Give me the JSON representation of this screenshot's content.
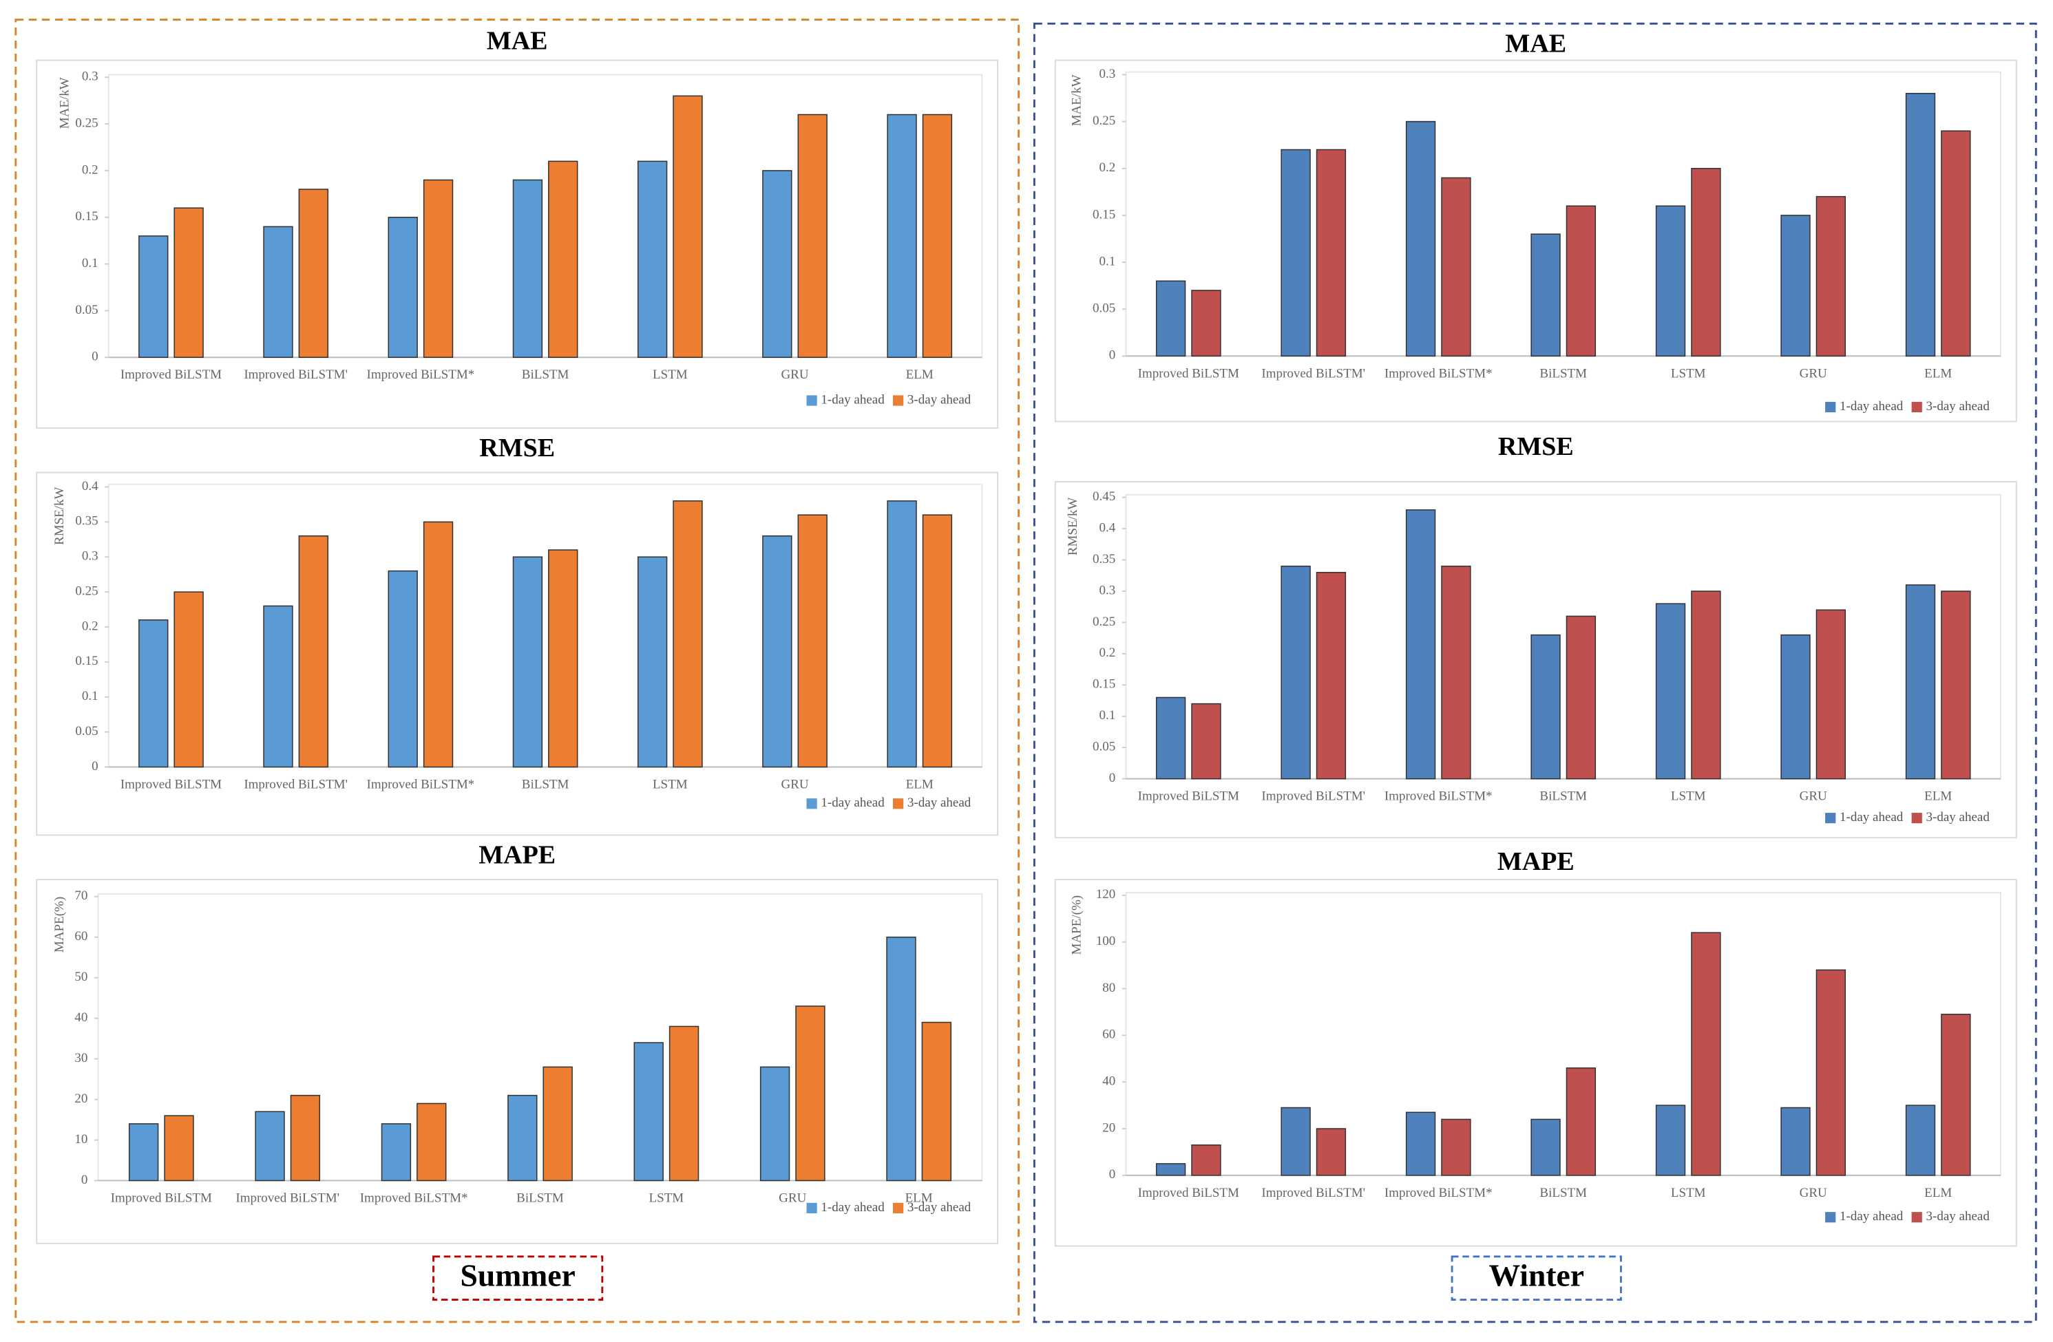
{
  "chart_data": [
    {
      "type": "bar",
      "title": "MAE",
      "ylabel": "MAE/kW",
      "categories": [
        "Improved BiLSTM",
        "Improved BiLSTM'",
        "Improved BiLSTM*",
        "BiLSTM",
        "LSTM",
        "GRU",
        "ELM"
      ],
      "series": [
        {
          "name": "1-day ahead",
          "color": "#5b9bd5",
          "values": [
            0.13,
            0.14,
            0.15,
            0.19,
            0.21,
            0.2,
            0.26
          ]
        },
        {
          "name": "3-day ahead",
          "color": "#ed7d31",
          "values": [
            0.16,
            0.18,
            0.19,
            0.21,
            0.28,
            0.26,
            0.26
          ]
        }
      ],
      "ylim": [
        0,
        0.3
      ],
      "yticks": [
        0,
        0.05,
        0.1,
        0.15,
        0.2,
        0.25,
        0.3
      ],
      "legend": "bottom-right"
    },
    {
      "type": "bar",
      "title": "RMSE",
      "ylabel": "RMSE/kW",
      "categories": [
        "Improved BiLSTM",
        "Improved BiLSTM'",
        "Improved BiLSTM*",
        "BiLSTM",
        "LSTM",
        "GRU",
        "ELM"
      ],
      "series": [
        {
          "name": "1-day ahead",
          "color": "#5b9bd5",
          "values": [
            0.21,
            0.23,
            0.28,
            0.3,
            0.3,
            0.33,
            0.38
          ]
        },
        {
          "name": "3-day ahead",
          "color": "#ed7d31",
          "values": [
            0.25,
            0.33,
            0.35,
            0.31,
            0.38,
            0.36,
            0.36
          ]
        }
      ],
      "ylim": [
        0,
        0.4
      ],
      "yticks": [
        0,
        0.05,
        0.1,
        0.15,
        0.2,
        0.25,
        0.3,
        0.35,
        0.4
      ],
      "legend": "bottom-right"
    },
    {
      "type": "bar",
      "title": "MAPE",
      "ylabel": "MAPE(%)",
      "categories": [
        "Improved BiLSTM",
        "Improved BiLSTM'",
        "Improved BiLSTM*",
        "BiLSTM",
        "LSTM",
        "GRU",
        "ELM"
      ],
      "series": [
        {
          "name": "1-day ahead",
          "color": "#5b9bd5",
          "values": [
            14,
            17,
            14,
            21,
            34,
            28,
            60
          ]
        },
        {
          "name": "3-day ahead",
          "color": "#ed7d31",
          "values": [
            16,
            21,
            19,
            28,
            38,
            43,
            39
          ]
        }
      ],
      "ylim": [
        0,
        70
      ],
      "yticks": [
        0,
        10,
        20,
        30,
        40,
        50,
        60,
        70
      ],
      "legend": "bottom-right"
    },
    {
      "type": "bar",
      "title": "MAE",
      "ylabel": "MAE/kW",
      "categories": [
        "Improved BiLSTM",
        "Improved BiLSTM'",
        "Improved BiLSTM*",
        "BiLSTM",
        "LSTM",
        "GRU",
        "ELM"
      ],
      "series": [
        {
          "name": "1-day ahead",
          "color": "#4f81bd",
          "values": [
            0.08,
            0.22,
            0.25,
            0.13,
            0.16,
            0.15,
            0.28
          ]
        },
        {
          "name": "3-day ahead",
          "color": "#c0504d",
          "values": [
            0.07,
            0.22,
            0.19,
            0.16,
            0.2,
            0.17,
            0.24
          ]
        }
      ],
      "ylim": [
        0,
        0.3
      ],
      "yticks": [
        0,
        0.05,
        0.1,
        0.15,
        0.2,
        0.25,
        0.3
      ],
      "legend": "bottom-right"
    },
    {
      "type": "bar",
      "title": "RMSE",
      "ylabel": "RMSE/kW",
      "categories": [
        "Improved BiLSTM",
        "Improved BiLSTM'",
        "Improved BiLSTM*",
        "BiLSTM",
        "LSTM",
        "GRU",
        "ELM"
      ],
      "series": [
        {
          "name": "1-day ahead",
          "color": "#4f81bd",
          "values": [
            0.13,
            0.34,
            0.43,
            0.23,
            0.28,
            0.23,
            0.31
          ]
        },
        {
          "name": "3-day ahead",
          "color": "#c0504d",
          "values": [
            0.12,
            0.33,
            0.34,
            0.26,
            0.3,
            0.27,
            0.3
          ]
        }
      ],
      "ylim": [
        0,
        0.45
      ],
      "yticks": [
        0,
        0.05,
        0.1,
        0.15,
        0.2,
        0.25,
        0.3,
        0.35,
        0.4,
        0.45
      ],
      "legend": "bottom-right"
    },
    {
      "type": "bar",
      "title": "MAPE",
      "ylabel": "MAPE/(%)",
      "categories": [
        "Improved BiLSTM",
        "Improved BiLSTM'",
        "Improved BiLSTM*",
        "BiLSTM",
        "LSTM",
        "GRU",
        "ELM"
      ],
      "series": [
        {
          "name": "1-day ahead",
          "color": "#4f81bd",
          "values": [
            5,
            29,
            27,
            24,
            30,
            29,
            30
          ]
        },
        {
          "name": "3-day ahead",
          "color": "#c0504d",
          "values": [
            13,
            20,
            24,
            46,
            104,
            88,
            69
          ]
        }
      ],
      "ylim": [
        0,
        120
      ],
      "yticks": [
        0,
        20,
        40,
        60,
        80,
        100,
        120
      ],
      "legend": "bottom-right"
    }
  ],
  "panel_labels": [
    "Summer",
    "Winter"
  ]
}
